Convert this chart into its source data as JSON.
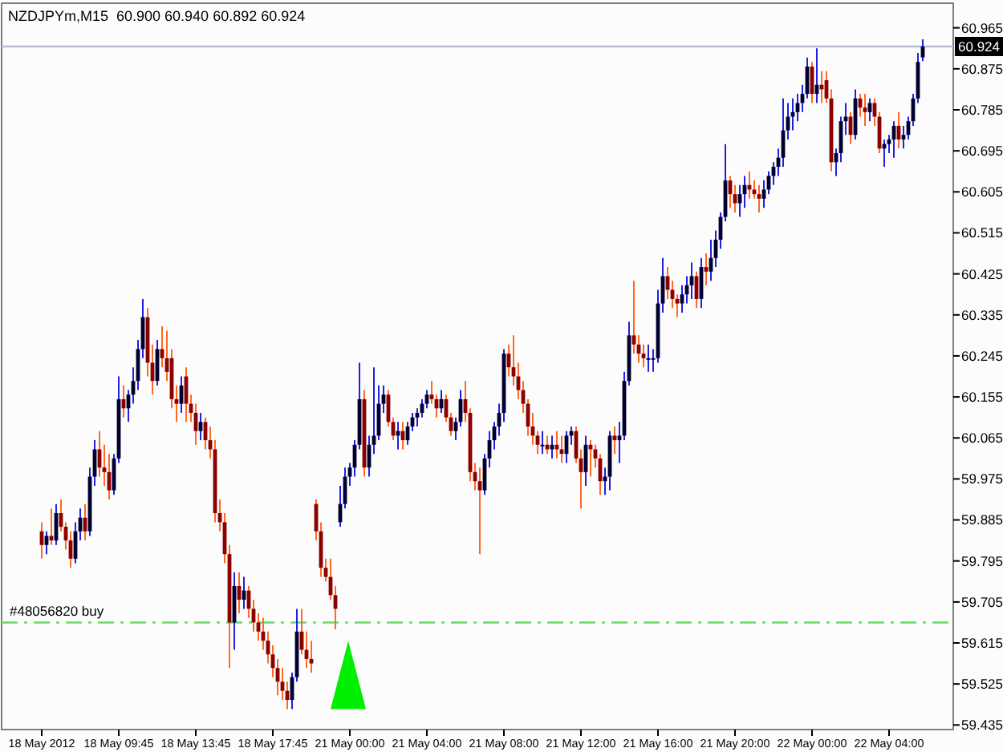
{
  "chart_data": {
    "type": "candlestick",
    "title": "NZDJPYm,M15  60.900 60.940 60.892 60.924",
    "categories": [
      "18 May 2012",
      null,
      null,
      null,
      null,
      null,
      null,
      null,
      null,
      null,
      null,
      null,
      null,
      null,
      null,
      null,
      "18 May 09:45",
      null,
      null,
      null,
      null,
      null,
      null,
      null,
      null,
      null,
      null,
      null,
      null,
      null,
      null,
      null,
      "18 May 13:45",
      null,
      null,
      null,
      null,
      null,
      null,
      null,
      null,
      null,
      null,
      null,
      null,
      null,
      null,
      null,
      "18 May 17:45",
      null,
      null,
      null,
      null,
      null,
      null,
      null,
      null,
      null,
      null,
      null,
      null,
      null,
      null,
      null,
      "21 May 00:00",
      null,
      null,
      null,
      null,
      null,
      null,
      null,
      null,
      null,
      null,
      null,
      null,
      null,
      null,
      null,
      "21 May 04:00",
      null,
      null,
      null,
      null,
      null,
      null,
      null,
      null,
      null,
      null,
      null,
      null,
      null,
      null,
      null,
      "21 May 08:00",
      null,
      null,
      null,
      null,
      null,
      null,
      null,
      null,
      null,
      null,
      null,
      null,
      null,
      null,
      null,
      "21 May 12:00",
      null,
      null,
      null,
      null,
      null,
      null,
      null,
      null,
      null,
      null,
      null,
      null,
      null,
      null,
      null,
      "21 May 16:00",
      null,
      null,
      null,
      null,
      null,
      null,
      null,
      null,
      null,
      null,
      null,
      null,
      null,
      null,
      null,
      "21 May 20:00",
      null,
      null,
      null,
      null,
      null,
      null,
      null,
      null,
      null,
      null,
      null,
      null,
      null,
      null,
      null,
      "22 May 00:00",
      null,
      null,
      null,
      null,
      null,
      null,
      null,
      null,
      null,
      null,
      null,
      null,
      null,
      null,
      null,
      "22 May 04:00",
      null,
      null,
      null,
      null,
      null,
      null,
      null
    ],
    "ohlc": [
      [
        59.86,
        59.88,
        59.8,
        59.83
      ],
      [
        59.83,
        59.86,
        59.81,
        59.85
      ],
      [
        59.85,
        59.91,
        59.83,
        59.84
      ],
      [
        59.84,
        59.92,
        59.83,
        59.9
      ],
      [
        59.9,
        59.93,
        59.86,
        59.87
      ],
      [
        59.87,
        59.88,
        59.82,
        59.84
      ],
      [
        59.84,
        59.86,
        59.78,
        59.8
      ],
      [
        59.8,
        59.88,
        59.79,
        59.86
      ],
      [
        59.86,
        59.91,
        59.84,
        59.89
      ],
      [
        59.89,
        59.92,
        59.84,
        59.86
      ],
      [
        59.86,
        60.0,
        59.85,
        59.98
      ],
      [
        59.98,
        60.06,
        59.96,
        60.04
      ],
      [
        60.04,
        60.08,
        59.98,
        60.0
      ],
      [
        60.0,
        60.05,
        59.96,
        59.99
      ],
      [
        59.99,
        60.03,
        59.93,
        59.95
      ],
      [
        59.95,
        60.03,
        59.94,
        60.02
      ],
      [
        60.02,
        60.2,
        60.01,
        60.15
      ],
      [
        60.15,
        60.18,
        60.11,
        60.13
      ],
      [
        60.13,
        60.17,
        60.1,
        60.16
      ],
      [
        60.16,
        60.22,
        60.14,
        60.19
      ],
      [
        60.19,
        60.28,
        60.17,
        60.26
      ],
      [
        60.26,
        60.37,
        60.24,
        60.33
      ],
      [
        60.33,
        60.35,
        60.2,
        60.23
      ],
      [
        60.23,
        60.27,
        60.16,
        60.19
      ],
      [
        60.19,
        60.28,
        60.18,
        60.26
      ],
      [
        60.26,
        60.31,
        60.22,
        60.24
      ],
      [
        60.24,
        60.3,
        60.19,
        60.21
      ],
      [
        60.24,
        60.26,
        60.13,
        60.15
      ],
      [
        60.15,
        60.18,
        60.1,
        60.14
      ],
      [
        60.14,
        60.2,
        60.12,
        60.18
      ],
      [
        60.2,
        60.22,
        60.1,
        60.14
      ],
      [
        60.14,
        60.16,
        60.1,
        60.12
      ],
      [
        60.12,
        60.14,
        60.05,
        60.08
      ],
      [
        60.08,
        60.12,
        60.06,
        60.1
      ],
      [
        60.1,
        60.11,
        60.04,
        60.06
      ],
      [
        60.06,
        60.09,
        60.02,
        60.04
      ],
      [
        60.04,
        60.06,
        59.88,
        59.9
      ],
      [
        59.9,
        59.93,
        59.86,
        59.88
      ],
      [
        59.88,
        59.9,
        59.79,
        59.81
      ],
      [
        59.81,
        59.83,
        59.56,
        59.66
      ],
      [
        59.66,
        59.77,
        59.6,
        59.74
      ],
      [
        59.74,
        59.77,
        59.68,
        59.71
      ],
      [
        59.71,
        59.76,
        59.69,
        59.73
      ],
      [
        59.73,
        59.74,
        59.67,
        59.69
      ],
      [
        59.69,
        59.71,
        59.64,
        59.66
      ],
      [
        59.66,
        59.68,
        59.62,
        59.64
      ],
      [
        59.64,
        59.67,
        59.6,
        59.62
      ],
      [
        59.62,
        59.64,
        59.57,
        59.59
      ],
      [
        59.59,
        59.61,
        59.54,
        59.56
      ],
      [
        59.56,
        59.58,
        59.5,
        59.53
      ],
      [
        59.53,
        59.56,
        59.49,
        59.51
      ],
      [
        59.51,
        59.53,
        59.47,
        59.49
      ],
      [
        59.49,
        59.55,
        59.47,
        59.54
      ],
      [
        59.54,
        59.69,
        59.53,
        59.64
      ],
      [
        59.64,
        59.69,
        59.59,
        59.6
      ],
      [
        59.6,
        59.64,
        59.56,
        59.58
      ],
      [
        59.58,
        59.62,
        59.55,
        59.57
      ],
      [
        59.92,
        59.93,
        59.84,
        59.86
      ],
      [
        59.86,
        59.88,
        59.76,
        59.78
      ],
      [
        59.78,
        59.8,
        59.75,
        59.76
      ],
      [
        59.76,
        59.8,
        59.71,
        59.72
      ],
      [
        59.72,
        59.74,
        59.645,
        59.69
      ],
      [
        59.88,
        59.96,
        59.87,
        59.92
      ],
      [
        59.92,
        60.0,
        59.91,
        59.98
      ],
      [
        59.98,
        60.01,
        59.96,
        60.0
      ],
      [
        60.0,
        60.06,
        59.98,
        60.05
      ],
      [
        60.05,
        60.23,
        60.04,
        60.15
      ],
      [
        60.15,
        60.17,
        59.98,
        60.0
      ],
      [
        60.0,
        60.07,
        59.98,
        60.05
      ],
      [
        60.05,
        60.22,
        60.03,
        60.07
      ],
      [
        60.07,
        60.18,
        60.06,
        60.14
      ],
      [
        60.14,
        60.18,
        60.12,
        60.16
      ],
      [
        60.16,
        60.17,
        60.09,
        60.1
      ],
      [
        60.1,
        60.11,
        60.06,
        60.07
      ],
      [
        60.07,
        60.1,
        60.04,
        60.08
      ],
      [
        60.08,
        60.1,
        60.04,
        60.06
      ],
      [
        60.06,
        60.1,
        60.05,
        60.09
      ],
      [
        60.09,
        60.12,
        60.08,
        60.11
      ],
      [
        60.11,
        60.13,
        60.09,
        60.12
      ],
      [
        60.12,
        60.15,
        60.11,
        60.14
      ],
      [
        60.14,
        60.17,
        60.13,
        60.16
      ],
      [
        60.16,
        60.19,
        60.14,
        60.15
      ],
      [
        60.15,
        60.16,
        60.11,
        60.13
      ],
      [
        60.13,
        60.17,
        60.12,
        60.15
      ],
      [
        60.15,
        60.16,
        60.1,
        60.11
      ],
      [
        60.11,
        60.12,
        60.07,
        60.08
      ],
      [
        60.08,
        60.11,
        60.06,
        60.1
      ],
      [
        60.1,
        60.17,
        60.09,
        60.15
      ],
      [
        60.15,
        60.19,
        60.1,
        60.12
      ],
      [
        60.12,
        60.13,
        59.97,
        59.99
      ],
      [
        59.99,
        60.01,
        59.95,
        59.97
      ],
      [
        59.97,
        60.0,
        59.81,
        59.95
      ],
      [
        59.95,
        60.03,
        59.94,
        60.02
      ],
      [
        60.02,
        60.08,
        60.0,
        60.06
      ],
      [
        60.06,
        60.1,
        60.04,
        60.09
      ],
      [
        60.09,
        60.14,
        60.07,
        60.12
      ],
      [
        60.12,
        60.26,
        60.1,
        60.25
      ],
      [
        60.25,
        60.27,
        60.2,
        60.22
      ],
      [
        60.22,
        60.29,
        60.18,
        60.2
      ],
      [
        60.2,
        60.23,
        60.15,
        60.17
      ],
      [
        60.17,
        60.19,
        60.12,
        60.14
      ],
      [
        60.14,
        60.15,
        60.07,
        60.09
      ],
      [
        60.09,
        60.12,
        60.05,
        60.07
      ],
      [
        60.07,
        60.08,
        60.03,
        60.05
      ],
      [
        60.05,
        60.08,
        60.03,
        60.05
      ],
      [
        60.05,
        60.07,
        60.03,
        60.04
      ],
      [
        60.04,
        60.07,
        60.02,
        60.05
      ],
      [
        60.05,
        60.08,
        60.02,
        60.04
      ],
      [
        60.04,
        60.07,
        60.01,
        60.03
      ],
      [
        60.03,
        60.08,
        60.01,
        60.07
      ],
      [
        60.07,
        60.09,
        60.05,
        60.08
      ],
      [
        60.08,
        60.09,
        60.01,
        60.02
      ],
      [
        60.02,
        60.04,
        59.91,
        59.99
      ],
      [
        59.99,
        60.07,
        59.96,
        60.05
      ],
      [
        60.05,
        60.06,
        59.98,
        60.04
      ],
      [
        60.04,
        60.05,
        60.0,
        60.02
      ],
      [
        60.02,
        60.03,
        59.94,
        59.97
      ],
      [
        59.97,
        60.0,
        59.94,
        59.98
      ],
      [
        59.98,
        60.08,
        59.95,
        60.07
      ],
      [
        60.07,
        60.09,
        60.03,
        60.06
      ],
      [
        60.06,
        60.1,
        60.01,
        60.07
      ],
      [
        60.07,
        60.21,
        60.06,
        60.19
      ],
      [
        60.19,
        60.32,
        60.18,
        60.29
      ],
      [
        60.29,
        60.41,
        60.25,
        60.27
      ],
      [
        60.27,
        60.29,
        60.23,
        60.25
      ],
      [
        60.25,
        60.27,
        60.22,
        60.24
      ],
      [
        60.24,
        60.27,
        60.21,
        60.24
      ],
      [
        60.24,
        60.26,
        60.21,
        60.24
      ],
      [
        60.24,
        60.39,
        60.23,
        60.36
      ],
      [
        60.36,
        60.46,
        60.34,
        60.42
      ],
      [
        60.42,
        60.44,
        60.37,
        60.39
      ],
      [
        60.39,
        60.41,
        60.35,
        60.37
      ],
      [
        60.37,
        60.38,
        60.33,
        60.36
      ],
      [
        60.36,
        60.4,
        60.34,
        60.38
      ],
      [
        60.38,
        60.42,
        60.36,
        60.4
      ],
      [
        60.4,
        60.45,
        60.37,
        60.42
      ],
      [
        60.42,
        60.43,
        60.35,
        60.37
      ],
      [
        60.37,
        60.46,
        60.35,
        60.44
      ],
      [
        60.44,
        60.47,
        60.4,
        60.43
      ],
      [
        60.43,
        60.5,
        60.41,
        60.46
      ],
      [
        60.46,
        60.52,
        60.44,
        60.5
      ],
      [
        60.5,
        60.56,
        60.48,
        60.55
      ],
      [
        60.55,
        60.71,
        60.54,
        60.63
      ],
      [
        60.63,
        60.64,
        60.57,
        60.6
      ],
      [
        60.6,
        60.62,
        60.56,
        60.58
      ],
      [
        60.58,
        60.62,
        60.55,
        60.6
      ],
      [
        60.6,
        60.64,
        60.57,
        60.62
      ],
      [
        60.62,
        60.65,
        60.59,
        60.61
      ],
      [
        60.61,
        60.63,
        60.59,
        60.6
      ],
      [
        60.6,
        60.62,
        60.56,
        60.59
      ],
      [
        60.59,
        60.63,
        60.57,
        60.61
      ],
      [
        60.61,
        60.65,
        60.6,
        60.64
      ],
      [
        60.64,
        60.67,
        60.62,
        60.66
      ],
      [
        60.66,
        60.7,
        60.64,
        60.68
      ],
      [
        60.68,
        60.81,
        60.66,
        60.74
      ],
      [
        60.74,
        60.8,
        60.72,
        60.77
      ],
      [
        60.77,
        60.81,
        60.74,
        60.78
      ],
      [
        60.78,
        60.82,
        60.76,
        60.8
      ],
      [
        60.8,
        60.84,
        60.78,
        60.82
      ],
      [
        60.82,
        60.9,
        60.81,
        60.88
      ],
      [
        60.88,
        60.89,
        60.8,
        60.82
      ],
      [
        60.82,
        60.92,
        60.8,
        60.84
      ],
      [
        60.84,
        60.87,
        60.8,
        60.83
      ],
      [
        60.85,
        60.87,
        60.8,
        60.81
      ],
      [
        60.81,
        60.83,
        60.65,
        60.67
      ],
      [
        60.67,
        60.7,
        60.64,
        60.69
      ],
      [
        60.69,
        60.77,
        60.67,
        60.76
      ],
      [
        60.76,
        60.8,
        60.73,
        60.77
      ],
      [
        60.77,
        60.78,
        60.71,
        60.73
      ],
      [
        60.73,
        60.83,
        60.72,
        60.81
      ],
      [
        60.81,
        60.82,
        60.77,
        60.79
      ],
      [
        60.79,
        60.82,
        60.75,
        60.78
      ],
      [
        60.78,
        60.81,
        60.76,
        60.8
      ],
      [
        60.8,
        60.81,
        60.75,
        60.77
      ],
      [
        60.77,
        60.78,
        60.69,
        60.7
      ],
      [
        60.7,
        60.72,
        60.66,
        60.71
      ],
      [
        60.71,
        60.73,
        60.69,
        60.72
      ],
      [
        60.72,
        60.76,
        60.68,
        60.75
      ],
      [
        60.75,
        60.78,
        60.7,
        60.72
      ],
      [
        60.72,
        60.75,
        60.7,
        60.73
      ],
      [
        60.73,
        60.77,
        60.72,
        60.76
      ],
      [
        60.76,
        60.82,
        60.75,
        60.81
      ],
      [
        60.81,
        60.91,
        60.8,
        60.89
      ],
      [
        60.9,
        60.94,
        60.892,
        60.924
      ]
    ],
    "ylim": [
      59.425,
      61.019
    ],
    "yticks": [
      60.965,
      60.875,
      60.785,
      60.695,
      60.605,
      60.515,
      60.425,
      60.335,
      60.245,
      60.155,
      60.065,
      59.975,
      59.885,
      59.795,
      59.705,
      59.615,
      59.525,
      59.435
    ],
    "ref_lines": [
      {
        "axis": "y",
        "value": 59.66,
        "label": "#48056820 buy",
        "color": "#66dd66",
        "line_style": "dashed"
      },
      {
        "axis": "y",
        "value": 60.924,
        "label": "60.924",
        "color": "#b4bcd8",
        "line_style": "solid"
      }
    ]
  }
}
